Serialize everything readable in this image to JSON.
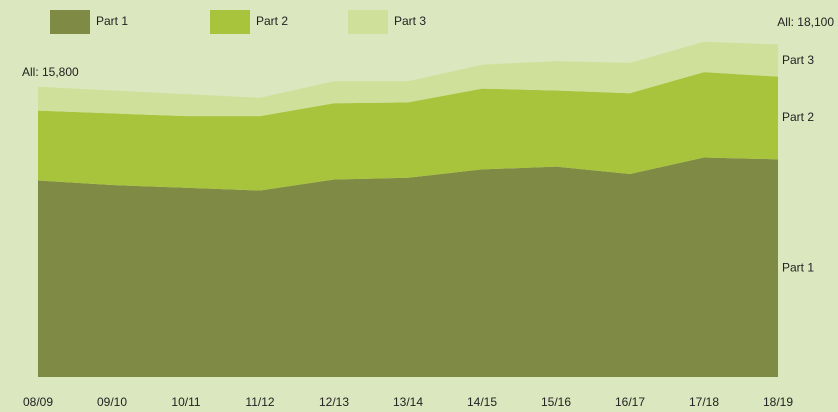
{
  "chart_data": {
    "type": "stacked_area",
    "categories": [
      "08/09",
      "09/10",
      "10/11",
      "11/12",
      "12/13",
      "13/14",
      "14/15",
      "15/16",
      "16/17",
      "17/18",
      "18/19"
    ],
    "series": [
      {
        "name": "Part 1",
        "color": "#7f8b45",
        "values": [
          10700,
          10450,
          10300,
          10150,
          10750,
          10850,
          11300,
          11450,
          11050,
          11950,
          11850
        ]
      },
      {
        "name": "Part 2",
        "color": "#a8c43c",
        "values": [
          3800,
          3900,
          3900,
          4050,
          4150,
          4100,
          4400,
          4150,
          4400,
          4650,
          4500
        ]
      },
      {
        "name": "Part 3",
        "color": "#cfe09a",
        "values": [
          1300,
          1250,
          1200,
          1000,
          1200,
          1150,
          1300,
          1600,
          1650,
          1650,
          1750
        ]
      }
    ],
    "annotations": [
      "All: 15,800",
      "All: 18,100"
    ],
    "ylim": [
      0,
      19000
    ],
    "legend": "top"
  }
}
